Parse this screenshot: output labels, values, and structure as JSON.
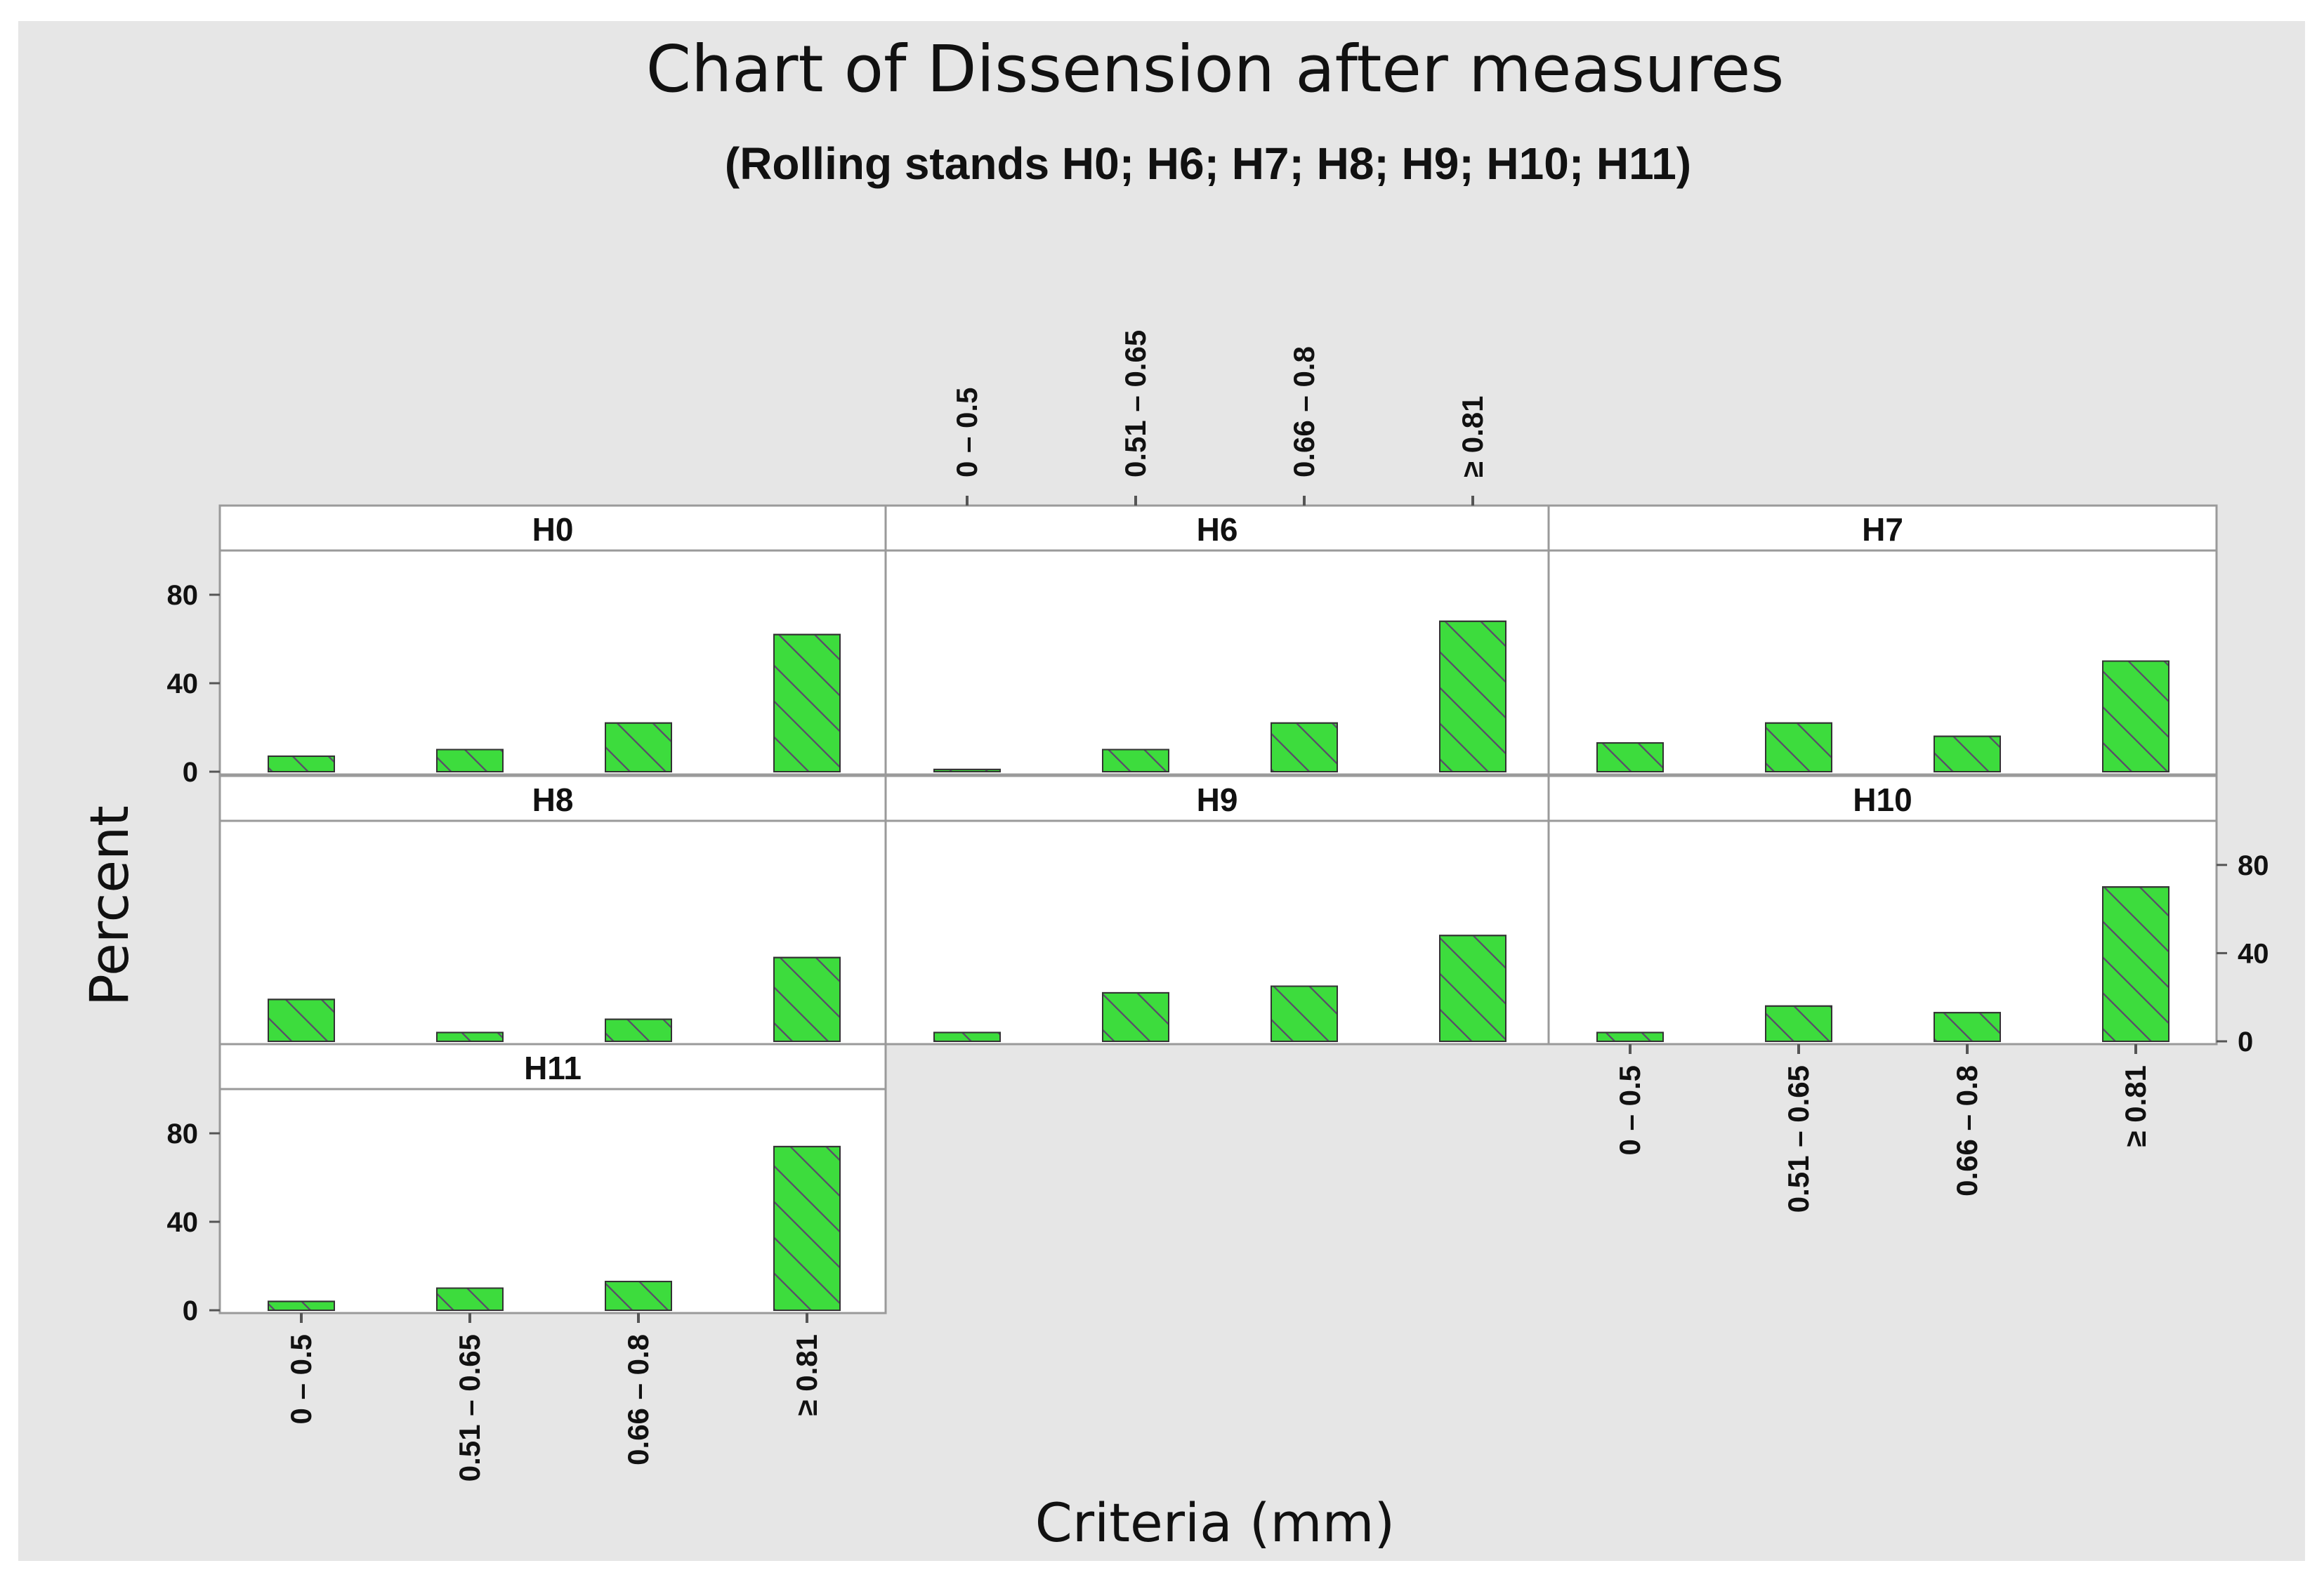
{
  "chart_data": {
    "type": "bar",
    "title": "Chart of Dissension after measures",
    "subtitle": "(Rolling stands H0; H6; H7; H8; H9; H10; H11)",
    "xlabel": "Criteria (mm)",
    "ylabel": "Percent",
    "ylim": [
      0,
      100
    ],
    "yticks": [
      "0",
      "40",
      "80"
    ],
    "categories": [
      "0 – 0.5",
      "0.51 – 0.65",
      "0.66 – 0.8",
      "≥ 0.81"
    ],
    "bar_color": "#3ddc3d",
    "hatch_color": "#5a4a6a",
    "panels": [
      {
        "name": "H0",
        "values": [
          7,
          10,
          22,
          62
        ]
      },
      {
        "name": "H6",
        "values": [
          1,
          10,
          22,
          68
        ]
      },
      {
        "name": "H7",
        "values": [
          13,
          22,
          16,
          50
        ]
      },
      {
        "name": "H8",
        "values": [
          19,
          4,
          10,
          38
        ]
      },
      {
        "name": "H9",
        "values": [
          4,
          22,
          25,
          48
        ]
      },
      {
        "name": "H10",
        "values": [
          4,
          16,
          13,
          70
        ]
      },
      {
        "name": "H11",
        "values": [
          4,
          10,
          13,
          74
        ]
      }
    ]
  }
}
